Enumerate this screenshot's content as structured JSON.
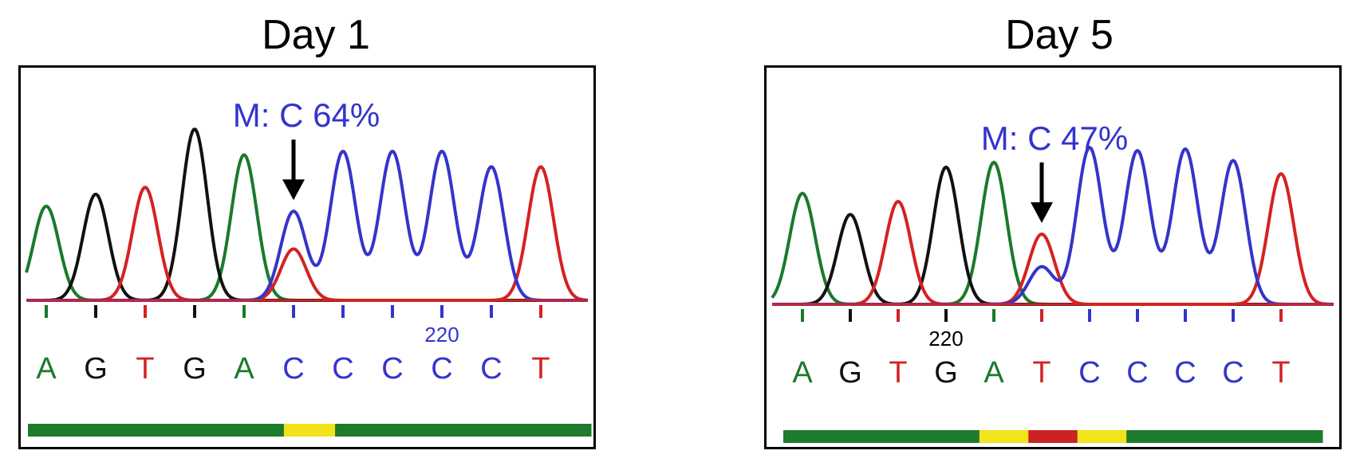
{
  "chart_data": [
    {
      "type": "line",
      "title": "Day 1",
      "annotation": "M: C 64%",
      "position_label": "220",
      "position_label_index": 8,
      "arrow_index": 5,
      "bases": [
        "A",
        "G",
        "T",
        "G",
        "A",
        "C",
        "C",
        "C",
        "C",
        "C",
        "T"
      ],
      "peak_heights": [
        0.55,
        0.62,
        0.66,
        1.0,
        0.85,
        0.52,
        0.87,
        0.87,
        0.87,
        0.78,
        0.78
      ],
      "secondary_peaks": [
        {
          "index": 5,
          "base": "T",
          "height": 0.3
        }
      ],
      "quality_bar": [
        "green",
        "green",
        "green",
        "green",
        "green",
        "yellow",
        "green",
        "green",
        "green",
        "green",
        "green"
      ],
      "ylim": [
        0,
        1
      ],
      "grid": false
    },
    {
      "type": "line",
      "title": "Day 5",
      "annotation": "M: C 47%",
      "position_label": "220",
      "position_label_index": 3,
      "arrow_index": 5,
      "bases": [
        "A",
        "G",
        "T",
        "G",
        "A",
        "T",
        "C",
        "C",
        "C",
        "C",
        "T"
      ],
      "peak_heights": [
        0.68,
        0.55,
        0.63,
        0.84,
        0.87,
        0.43,
        0.96,
        0.94,
        0.95,
        0.88,
        0.8
      ],
      "secondary_peaks": [
        {
          "index": 5,
          "base": "C",
          "height": 0.23
        }
      ],
      "quality_bar": [
        "green",
        "green",
        "green",
        "green",
        "yellow",
        "red",
        "yellow",
        "green",
        "green",
        "green",
        "green"
      ],
      "ylim": [
        0,
        1
      ],
      "grid": false
    }
  ],
  "colors": {
    "A": "#1a7a2a",
    "G": "#111111",
    "T": "#d42222",
    "C": "#3434cc",
    "bar_green": "#1e7a2c",
    "bar_yellow": "#f2e41c",
    "bar_red": "#cc2222"
  }
}
